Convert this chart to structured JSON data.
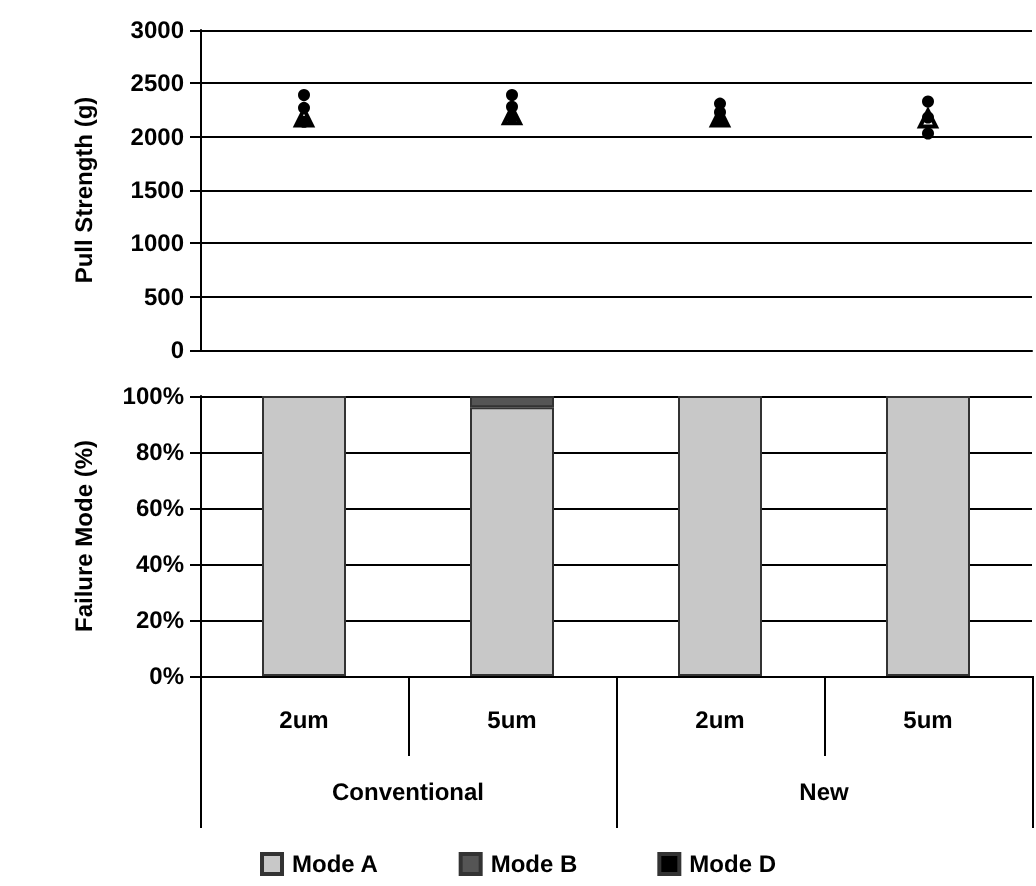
{
  "chart_data": [
    {
      "type": "scatter",
      "ylabel": "Pull Strength (g)",
      "categories": [
        null,
        null,
        null,
        null
      ],
      "ylim": [
        0,
        3000
      ],
      "yticks": [
        0,
        500,
        1000,
        1500,
        2000,
        2500,
        3000
      ],
      "grid": "y",
      "tick_labels": "y",
      "legend": false,
      "series": [
        {
          "color": "#000000",
          "marker": "circle",
          "values": [
            2390,
            2390,
            2310,
            2330
          ]
        },
        {
          "color": "#000000",
          "marker": "circle",
          "values": [
            2270,
            2280,
            2230,
            2180
          ]
        },
        {
          "color": "#000000",
          "marker": "circle",
          "values": [
            2140,
            2180,
            2150,
            2030
          ]
        },
        {
          "color": "#000000",
          "marker": "triangle",
          "values": [
            2180,
            2200,
            2180,
            2170
          ]
        }
      ]
    },
    {
      "type": "bar",
      "stacked": true,
      "ylabel": "Failure Mode (%)",
      "categories": [
        "2um",
        "5um",
        "2um",
        "5um"
      ],
      "annotations": [
        "Conventional",
        "New"
      ],
      "ylim": [
        0,
        100
      ],
      "yticks": [
        {
          "value": 0,
          "label": "0%"
        },
        {
          "value": 20,
          "label": "20%"
        },
        {
          "value": 40,
          "label": "40%"
        },
        {
          "value": 60,
          "label": "60%"
        },
        {
          "value": 80,
          "label": "80%"
        },
        {
          "value": 100,
          "label": "100%"
        }
      ],
      "grid": "y",
      "legend": "bottom",
      "series": [
        {
          "name": "Mode A",
          "color": "#c8c8c8",
          "values": [
            100,
            96,
            100,
            100
          ]
        },
        {
          "name": "Mode B",
          "color": "#555555",
          "values": [
            0,
            4,
            0,
            0
          ]
        },
        {
          "name": "Mode D",
          "color": "#000000",
          "values": [
            0,
            0,
            0,
            0
          ]
        }
      ]
    }
  ]
}
